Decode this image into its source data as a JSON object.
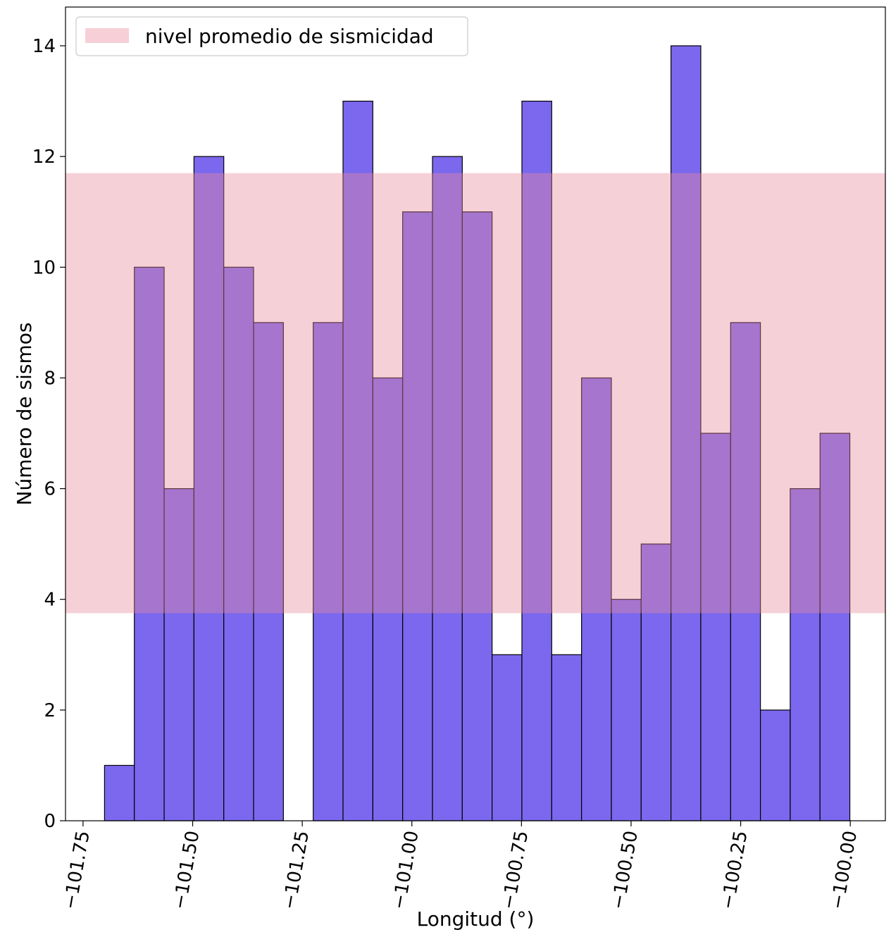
{
  "chart_data": {
    "type": "bar",
    "xlabel": "Longitud (°)",
    "ylabel": "Número de sismos",
    "xlim": [
      -101.79,
      -99.92
    ],
    "ylim": [
      0,
      14.7
    ],
    "xticks": [
      -101.75,
      -101.5,
      -101.25,
      -101.0,
      -100.75,
      -100.5,
      -100.25,
      -100.0
    ],
    "xtick_labels": [
      "−101.75",
      "−101.50",
      "−101.25",
      "−101.00",
      "−100.75",
      "−100.50",
      "−100.25",
      "−100.00"
    ],
    "yticks": [
      0,
      2,
      4,
      6,
      8,
      10,
      12,
      14
    ],
    "ytick_labels": [
      "0",
      "2",
      "4",
      "6",
      "8",
      "10",
      "12",
      "14"
    ],
    "bin_edges": [
      -101.701,
      -101.633,
      -101.565,
      -101.497,
      -101.429,
      -101.361,
      -101.293,
      -101.225,
      -101.157,
      -101.089,
      -101.021,
      -100.953,
      -100.885,
      -100.817,
      -100.749,
      -100.681,
      -100.613,
      -100.545,
      -100.477,
      -100.409,
      -100.341,
      -100.273,
      -100.205,
      -100.137,
      -100.069,
      -100.001
    ],
    "counts": [
      1,
      10,
      6,
      12,
      10,
      9,
      0,
      9,
      13,
      8,
      11,
      12,
      11,
      3,
      13,
      3,
      8,
      4,
      5,
      14,
      7,
      9,
      2,
      6,
      7
    ],
    "bar_color": "#7b68ee",
    "band": {
      "label": "nivel promedio de sismicidad",
      "y_from": 3.75,
      "y_to": 11.7,
      "color": "#f7d0d7"
    },
    "grid": false,
    "legend_position": "upper-left"
  }
}
